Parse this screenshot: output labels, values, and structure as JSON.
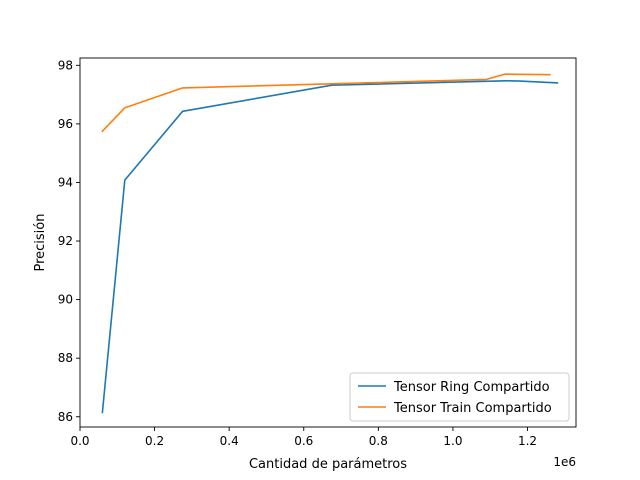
{
  "chart_data": {
    "type": "line",
    "title": "",
    "xlabel": "Cantidad de parámetros",
    "ylabel": "Precisión",
    "x_offset_label": "1e6",
    "xlim": [
      0.0,
      1.33
    ],
    "ylim": [
      85.65,
      98.25
    ],
    "x_ticks": [
      0.0,
      0.2,
      0.4,
      0.6,
      0.8,
      1.0,
      1.2
    ],
    "x_tick_labels": [
      "0.0",
      "0.2",
      "0.4",
      "0.6",
      "0.8",
      "1.0",
      "1.2"
    ],
    "y_ticks": [
      86,
      88,
      90,
      92,
      94,
      96,
      98
    ],
    "y_tick_labels": [
      "86",
      "88",
      "90",
      "92",
      "94",
      "96",
      "98"
    ],
    "grid": false,
    "legend_position": "lower-right",
    "series": [
      {
        "name": "Tensor Ring Compartido",
        "color": "#1f77b4",
        "x": [
          0.06,
          0.12,
          0.275,
          0.675,
          1.14,
          1.18,
          1.28
        ],
        "y": [
          86.15,
          94.08,
          96.43,
          97.32,
          97.47,
          97.46,
          97.4
        ]
      },
      {
        "name": "Tensor Train Compartido",
        "color": "#ff7f0e",
        "x": [
          0.06,
          0.12,
          0.275,
          0.675,
          1.09,
          1.14,
          1.26
        ],
        "y": [
          95.75,
          96.55,
          97.23,
          97.37,
          97.52,
          97.7,
          97.68
        ]
      }
    ]
  }
}
